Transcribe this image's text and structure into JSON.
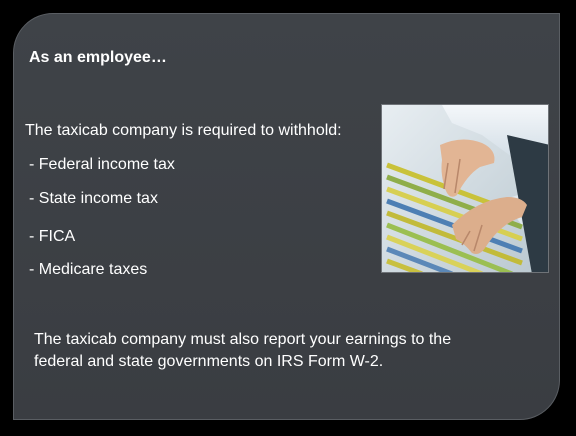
{
  "slide": {
    "heading": "As an employee…",
    "intro": "The taxicab company is required to withhold:",
    "items": [
      "- Federal income tax",
      "- State income tax",
      "- FICA",
      "- Medicare taxes"
    ],
    "footer": "The taxicab company must also report your earnings to the federal and state governments on IRS Form W-2.",
    "photo_icon": "file-cabinet-photo"
  },
  "colors": {
    "background": "#000000",
    "slide": "#3d4045",
    "text": "#ffffff"
  }
}
